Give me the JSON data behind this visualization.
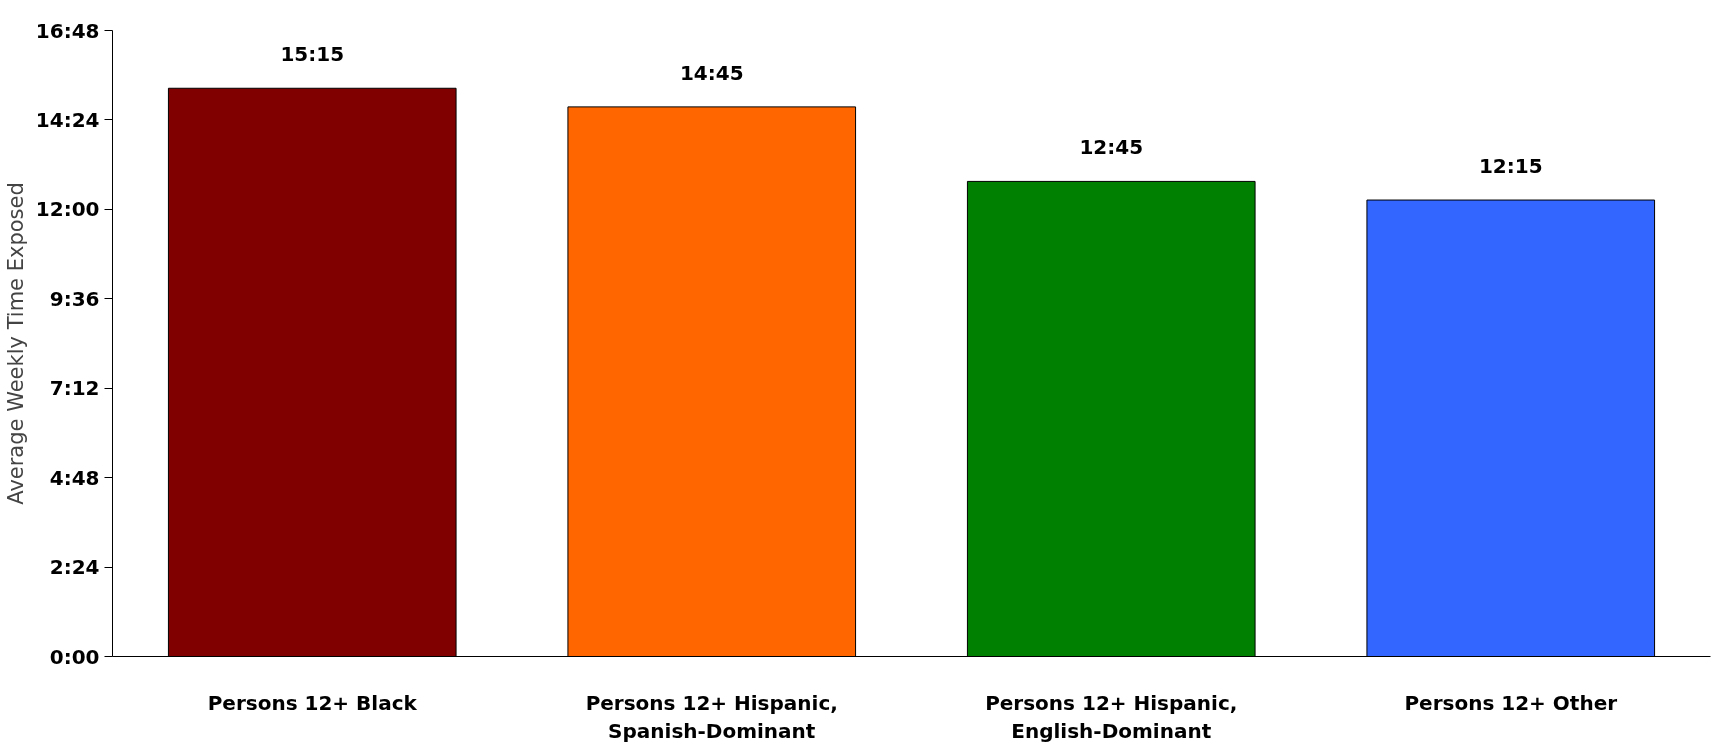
{
  "chart_data": {
    "type": "bar",
    "ylabel": "Average Weekly Time Exposed",
    "categories": [
      "Persons 12+ Black",
      "Persons 12+ Hispanic, Spanish-Dominant",
      "Persons 12+ Hispanic, English-Dominant",
      "Persons 12+ Other"
    ],
    "values": [
      15.25,
      14.75,
      12.75,
      12.25
    ],
    "colors": [
      "#800000",
      "#ff6600",
      "#008000",
      "#3366ff"
    ],
    "value_labels": [
      "15:15",
      "14:45",
      "12:45",
      "12:15"
    ],
    "ylim": [
      0,
      16.8
    ],
    "yticks": [
      {
        "value": 0,
        "label": "0:00"
      },
      {
        "value": 2.4,
        "label": "2:24"
      },
      {
        "value": 4.8,
        "label": "4:48"
      },
      {
        "value": 7.2,
        "label": "7:12"
      },
      {
        "value": 9.6,
        "label": "9:36"
      },
      {
        "value": 12,
        "label": "12:00"
      },
      {
        "value": 14.4,
        "label": "14:24"
      },
      {
        "value": 16.8,
        "label": "16:48"
      }
    ],
    "grid": false
  }
}
